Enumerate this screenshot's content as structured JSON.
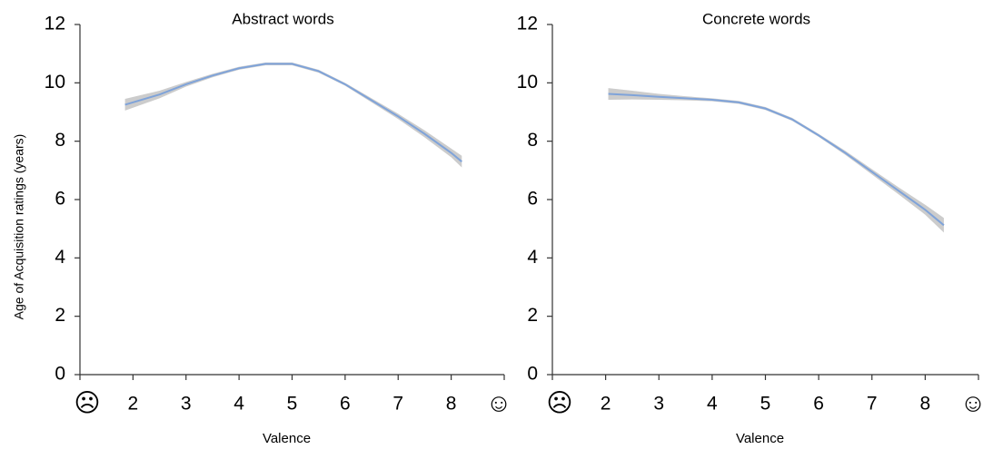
{
  "chart_data": [
    {
      "type": "line",
      "title": "Abstract words",
      "xlabel": "Valence",
      "ylabel": "Age of Acquisition ratings (years)",
      "x": [
        1.85,
        2.5,
        3,
        3.5,
        4,
        4.5,
        5,
        5.5,
        6,
        6.5,
        7,
        7.5,
        8,
        8.2
      ],
      "values": [
        9.25,
        9.6,
        9.95,
        10.25,
        10.5,
        10.65,
        10.65,
        10.4,
        9.95,
        9.4,
        8.85,
        8.25,
        7.6,
        7.3
      ],
      "lower": [
        9.05,
        9.47,
        9.87,
        10.19,
        10.45,
        10.6,
        10.6,
        10.35,
        9.9,
        9.33,
        8.76,
        8.13,
        7.45,
        7.1
      ],
      "upper": [
        9.45,
        9.73,
        10.03,
        10.31,
        10.55,
        10.7,
        10.7,
        10.45,
        10.0,
        9.47,
        8.94,
        8.37,
        7.75,
        7.5
      ],
      "color": "#7fa3d9",
      "band_color": "#cccccc",
      "xlim": [
        1,
        9
      ],
      "ylim": [
        0,
        12
      ],
      "xticks": [
        {
          "value": 1,
          "label": "☹"
        },
        2,
        3,
        4,
        5,
        6,
        7,
        8,
        {
          "value": 9,
          "label": "☺"
        }
      ],
      "yticks": [
        0,
        2,
        4,
        6,
        8,
        10,
        12
      ]
    },
    {
      "type": "line",
      "title": "Concrete words",
      "xlabel": "Valence",
      "x": [
        2.05,
        2.5,
        3,
        3.5,
        4,
        4.5,
        5,
        5.5,
        6,
        6.5,
        7,
        7.5,
        8,
        8.35
      ],
      "values": [
        9.62,
        9.58,
        9.52,
        9.47,
        9.42,
        9.33,
        9.12,
        8.75,
        8.2,
        7.6,
        6.95,
        6.3,
        5.65,
        5.12
      ],
      "lower": [
        9.42,
        9.43,
        9.42,
        9.4,
        9.37,
        9.28,
        9.07,
        8.7,
        8.15,
        7.53,
        6.86,
        6.18,
        5.48,
        4.87
      ],
      "upper": [
        9.82,
        9.73,
        9.62,
        9.54,
        9.47,
        9.38,
        9.17,
        8.8,
        8.25,
        7.67,
        7.04,
        6.42,
        5.82,
        5.37
      ],
      "color": "#7fa3d9",
      "band_color": "#cccccc",
      "xlim": [
        1,
        9
      ],
      "ylim": [
        0,
        12
      ],
      "xticks": [
        {
          "value": 1,
          "label": "☹"
        },
        2,
        3,
        4,
        5,
        6,
        7,
        8,
        {
          "value": 9,
          "label": "☺"
        }
      ],
      "yticks": [
        0,
        2,
        4,
        6,
        8,
        10,
        12
      ]
    }
  ]
}
